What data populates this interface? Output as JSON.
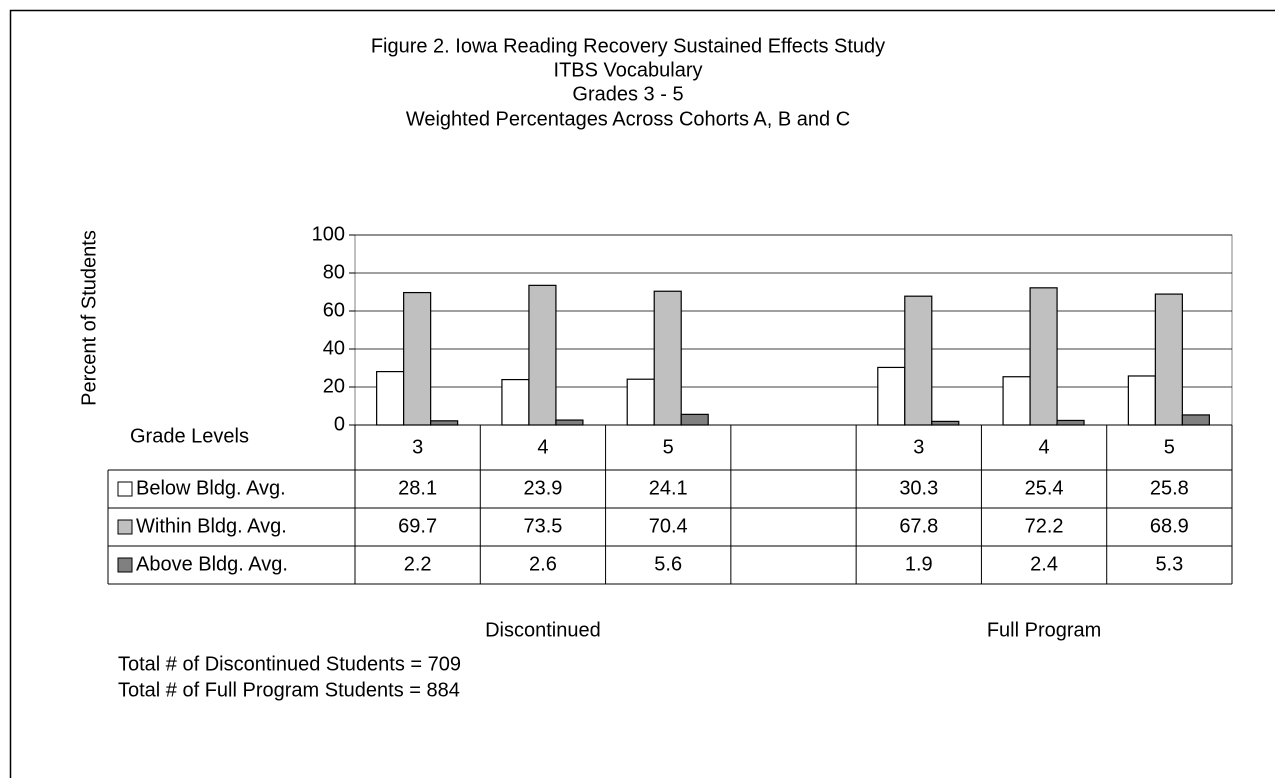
{
  "chart_data": {
    "type": "bar",
    "title": "Figure 2.  Iowa Reading Recovery Sustained Effects Study",
    "subtitle": [
      "ITBS Vocabulary",
      "Grades 3 - 5",
      "Weighted Percentages Across Cohorts A, B and C"
    ],
    "ylabel": "Percent of Students",
    "x_header": "Grade Levels",
    "categories": [
      "3",
      "4",
      "5",
      null,
      "3",
      "4",
      "5"
    ],
    "groups": [
      "Discontinued",
      "Full Program"
    ],
    "series": [
      {
        "name": "Below Bldg. Avg.",
        "color": "#ffffff",
        "values": [
          28.1,
          23.9,
          24.1,
          null,
          30.3,
          25.4,
          25.8
        ]
      },
      {
        "name": "Within Bldg. Avg.",
        "color": "#c0c0c0",
        "values": [
          69.7,
          73.5,
          70.4,
          null,
          67.8,
          72.2,
          68.9
        ]
      },
      {
        "name": "Above Bldg. Avg.",
        "color": "#808080",
        "values": [
          2.2,
          2.6,
          5.6,
          null,
          1.9,
          2.4,
          5.3
        ]
      }
    ],
    "ylim": [
      0,
      100
    ],
    "yticks": [
      0,
      20,
      40,
      60,
      80,
      100
    ],
    "grid": true,
    "notes": [
      "Total # of Discontinued Students = 709",
      "Total # of Full Program Students = 884"
    ]
  }
}
